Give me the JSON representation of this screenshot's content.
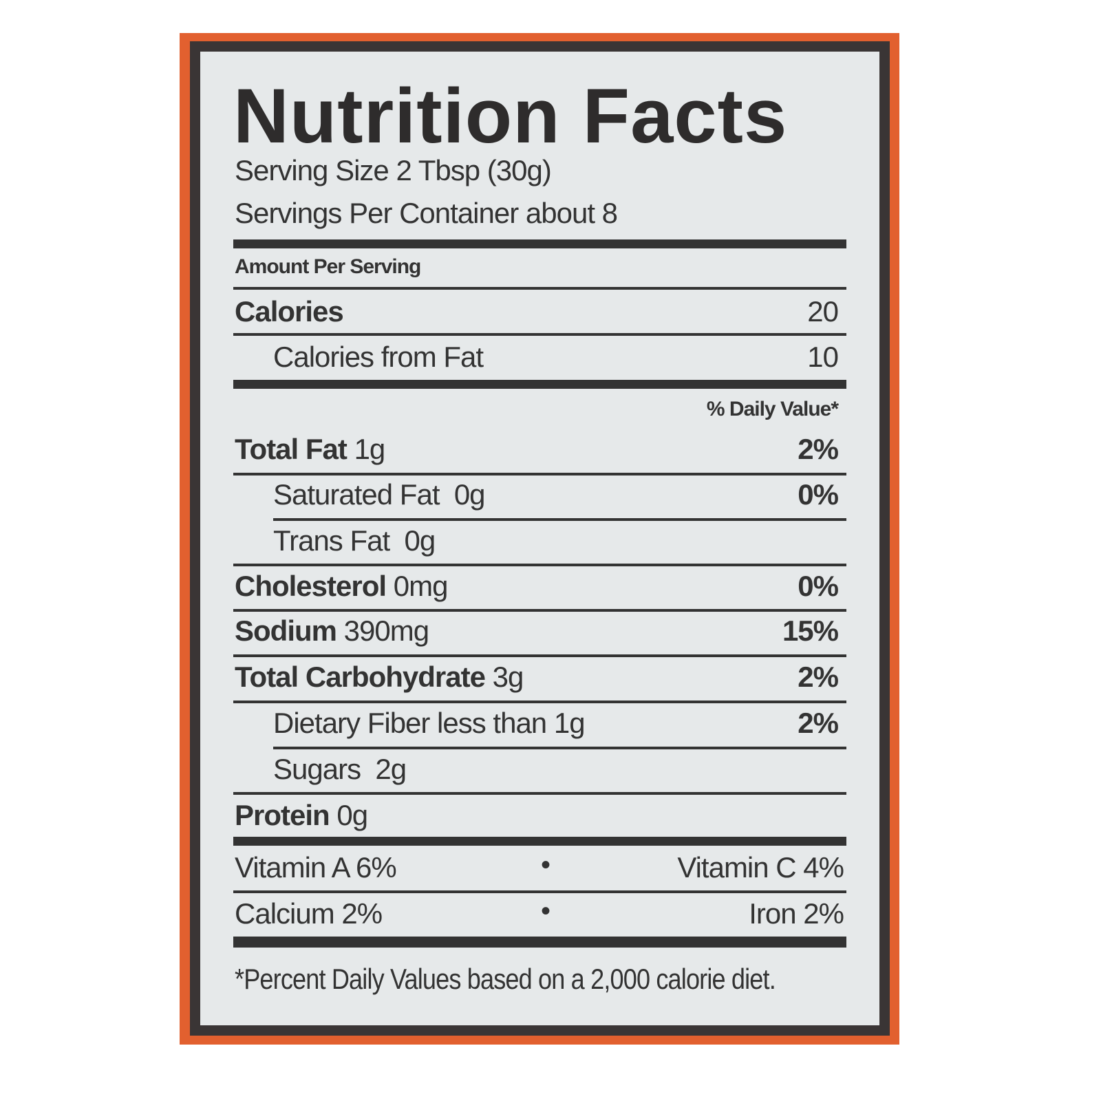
{
  "colors": {
    "package": "#e2602f",
    "border": "#3a3535",
    "label_bg": "#e6e9ea",
    "text": "#333333"
  },
  "title": "Nutrition Facts",
  "serving_size": "Serving Size 2 Tbsp (30g)",
  "servings_per_container": "Servings Per Container about 8",
  "amount_per_serving": "Amount Per Serving",
  "calories": {
    "label": "Calories",
    "value": "20"
  },
  "calories_from_fat": {
    "label": "Calories from Fat",
    "value": "10"
  },
  "daily_value_header": "% Daily Value*",
  "nutrients": [
    {
      "label": "Total Fat",
      "amount": "1g",
      "dv": "2%"
    },
    {
      "label": "Saturated Fat",
      "amount": "0g",
      "dv": "0%"
    },
    {
      "label": "Trans Fat",
      "amount": "0g",
      "dv": ""
    },
    {
      "label": "Cholesterol",
      "amount": "0mg",
      "dv": "0%"
    },
    {
      "label": "Sodium",
      "amount": "390mg",
      "dv": "15%"
    },
    {
      "label": "Total Carbohydrate",
      "amount": "3g",
      "dv": "2%"
    },
    {
      "label": "Dietary Fiber less than 1g",
      "amount": "",
      "dv": "2%"
    },
    {
      "label": "Sugars",
      "amount": "2g",
      "dv": ""
    },
    {
      "label": "Protein",
      "amount": "0g",
      "dv": ""
    }
  ],
  "vitamins": [
    {
      "left": "Vitamin A  6%",
      "right": "Vitamin C  4%"
    },
    {
      "left": "Calcium  2%",
      "right": "Iron  2%"
    }
  ],
  "separator": "•",
  "footnote": "*Percent Daily Values based on a 2,000 calorie diet."
}
